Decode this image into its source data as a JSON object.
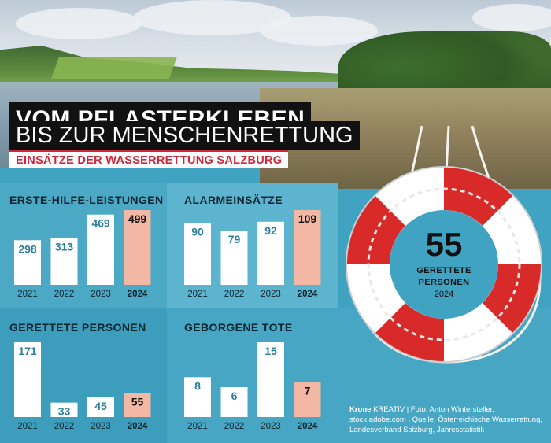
{
  "headline": {
    "line1": "VOM PFLASTERKLEBEN",
    "line2": "BIS ZUR MENSCHENRETTUNG",
    "subtitle": "EINSÄTZE DER WASSERRETTUNG SALZBURG"
  },
  "highlight": {
    "value": "55",
    "caption_line1": "GERETTETE",
    "caption_line2": "PERSONEN",
    "year": "2024"
  },
  "credits": {
    "brand": "Krone",
    "brand_suffix": "KREATIV",
    "photo": "Foto: Anton Wintersteller, stock.adobe.com",
    "source": "Quelle: Österreichische Wasserrettung, Landesverband Salzburg, Jahresstatistik"
  },
  "colors": {
    "bar": "#ffffff",
    "bar_highlight": "#f2b8a4",
    "value_text": "#2a7f9b",
    "headline_bg": "#111111",
    "subtitle_red": "#d0273a",
    "buoy_red": "#d92a2a"
  },
  "chart_data": [
    {
      "type": "bar",
      "title": "ERSTE-HILFE-LEISTUNGEN",
      "categories": [
        "2021",
        "2022",
        "2023",
        "2024"
      ],
      "values": [
        298,
        313,
        469,
        499
      ],
      "highlight_index": 3
    },
    {
      "type": "bar",
      "title": "ALARMEINSÄTZE",
      "categories": [
        "2021",
        "2022",
        "2023",
        "2024"
      ],
      "values": [
        90,
        79,
        92,
        109
      ],
      "highlight_index": 3
    },
    {
      "type": "bar",
      "title": "GERETTETE PERSONEN",
      "categories": [
        "2021",
        "2022",
        "2023",
        "2024"
      ],
      "values": [
        171,
        33,
        45,
        55
      ],
      "highlight_index": 3
    },
    {
      "type": "bar",
      "title": "GEBORGENE TOTE",
      "categories": [
        "2021",
        "2022",
        "2023",
        "2024"
      ],
      "values": [
        8,
        6,
        15,
        7
      ],
      "highlight_index": 3
    }
  ]
}
